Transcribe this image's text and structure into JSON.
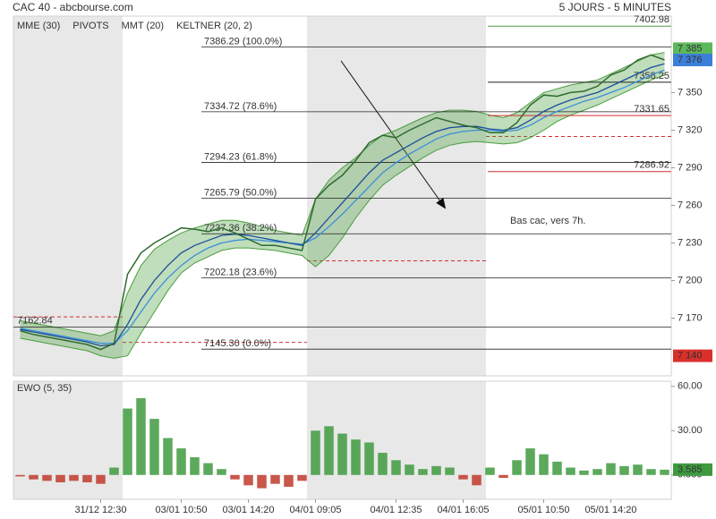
{
  "header": {
    "title": "CAC 40 - abcbourse.com",
    "period": "5 JOURS - 5 MINUTES"
  },
  "chart_data": [
    {
      "type": "line",
      "ylim": [
        7124,
        7411
      ],
      "yticks": [
        {
          "value": 7170,
          "label": "7 170"
        },
        {
          "value": 7200,
          "label": "7 200"
        },
        {
          "value": 7230,
          "label": "7 230"
        },
        {
          "value": 7260,
          "label": "7 260"
        },
        {
          "value": 7290,
          "label": "7 290"
        },
        {
          "value": 7320,
          "label": "7 320"
        },
        {
          "value": 7350,
          "label": "7 350"
        }
      ],
      "close_color": "#2e6b2e",
      "close": [
        7160,
        7157,
        7155,
        7153,
        7151,
        7149,
        7145,
        7150,
        7205,
        7222,
        7230,
        7236,
        7242,
        7241,
        7239,
        7242,
        7238,
        7233,
        7228,
        7228,
        7226,
        7224,
        7265,
        7276,
        7284,
        7296,
        7310,
        7316,
        7314,
        7320,
        7325,
        7330,
        7327,
        7324,
        7322,
        7318,
        7318,
        7326,
        7340,
        7348,
        7347,
        7350,
        7351,
        7355,
        7364,
        7368,
        7376,
        7380,
        7376
      ],
      "series": [
        {
          "name": "MME (30)",
          "color": "#3b8fd9",
          "values": [
            7162,
            7160,
            7158,
            7156,
            7154,
            7152,
            7150,
            7150,
            7160,
            7175,
            7190,
            7202,
            7212,
            7220,
            7226,
            7230,
            7232,
            7233,
            7232,
            7231,
            7230,
            7229,
            7234,
            7243,
            7253,
            7264,
            7275,
            7286,
            7294,
            7301,
            7307,
            7313,
            7317,
            7319,
            7320,
            7320,
            7319,
            7320,
            7324,
            7330,
            7335,
            7339,
            7343,
            7346,
            7350,
            7354,
            7359,
            7364,
            7368
          ]
        },
        {
          "name": "MMT (20)",
          "color": "#1b4f9c",
          "values": [
            7161,
            7159,
            7157,
            7155,
            7153,
            7151,
            7148,
            7149,
            7165,
            7185,
            7200,
            7212,
            7222,
            7228,
            7232,
            7236,
            7237,
            7236,
            7234,
            7232,
            7230,
            7228,
            7238,
            7250,
            7262,
            7274,
            7286,
            7296,
            7302,
            7308,
            7314,
            7319,
            7322,
            7323,
            7323,
            7321,
            7320,
            7322,
            7328,
            7335,
            7340,
            7344,
            7347,
            7350,
            7355,
            7360,
            7365,
            7370,
            7373
          ]
        },
        {
          "name": "KELTNER (20, 2)",
          "color": "#4a9e3f",
          "upper": [
            7168,
            7166,
            7164,
            7162,
            7160,
            7158,
            7156,
            7160,
            7190,
            7212,
            7225,
            7232,
            7238,
            7242,
            7245,
            7248,
            7248,
            7246,
            7243,
            7240,
            7238,
            7236,
            7265,
            7280,
            7290,
            7298,
            7308,
            7316,
            7320,
            7325,
            7330,
            7334,
            7336,
            7336,
            7335,
            7332,
            7330,
            7334,
            7342,
            7350,
            7353,
            7356,
            7358,
            7360,
            7365,
            7370,
            7375,
            7380,
            7382
          ],
          "lower": [
            7154,
            7152,
            7150,
            7148,
            7146,
            7144,
            7140,
            7138,
            7140,
            7158,
            7175,
            7192,
            7206,
            7214,
            7219,
            7224,
            7226,
            7226,
            7225,
            7224,
            7222,
            7220,
            7211,
            7220,
            7234,
            7250,
            7264,
            7276,
            7284,
            7291,
            7298,
            7304,
            7308,
            7310,
            7311,
            7310,
            7309,
            7310,
            7314,
            7320,
            7327,
            7332,
            7336,
            7340,
            7345,
            7350,
            7355,
            7360,
            7364
          ]
        }
      ],
      "pivots": {
        "name": "PIVOTS",
        "levels": [
          {
            "value": 7402.98,
            "color": "#4a9e3f"
          },
          {
            "value": 7358.25,
            "color": "#222222"
          },
          {
            "value": 7331.65,
            "color": "#d32f2f"
          },
          {
            "value": 7286.92,
            "color": "#d32f2f"
          }
        ],
        "prior_levels": [
          7171,
          7150.7,
          7215.7,
          7315
        ],
        "prior_color": "#d32f2f"
      },
      "fibonacci": [
        {
          "value": 7386.29,
          "label": "7386.29 (100.0%)"
        },
        {
          "value": 7334.72,
          "label": "7334.72 (78.6%)"
        },
        {
          "value": 7294.23,
          "label": "7294.23 (61.8%)"
        },
        {
          "value": 7265.79,
          "label": "7265.79 (50.0%)"
        },
        {
          "value": 7237.36,
          "label": "7237.36 (38.2%)"
        },
        {
          "value": 7202.18,
          "label": "7202.18 (23.6%)"
        },
        {
          "value": 7145.3,
          "label": "7145.30 (0.0%)"
        }
      ],
      "horizontal_lines": [
        7162.84
      ],
      "price_markers": [
        {
          "value": 7385,
          "label": "7 385",
          "color": "#5cb85c"
        },
        {
          "value": 7376,
          "label": "7 376",
          "color": "#3b7fd9"
        },
        {
          "value": 7140,
          "label": "7 140",
          "color": "#d9302c"
        }
      ],
      "annotation": "Bas cac, vers 7h."
    },
    {
      "type": "bar",
      "title": "EWO (5, 35)",
      "ylim": [
        -16.5,
        63.5
      ],
      "yticks": [
        {
          "value": 0,
          "label": "0.000"
        },
        {
          "value": 30,
          "label": "30.00"
        },
        {
          "value": 60,
          "label": "60.00"
        }
      ],
      "positive_color": "#3f9a3f",
      "negative_color": "#c0392b",
      "categories": [
        null,
        null,
        null,
        null,
        null,
        null,
        "31/12 12:30",
        null,
        null,
        null,
        null,
        null,
        "03/01 10:50",
        null,
        null,
        null,
        null,
        "03/01 14:20",
        null,
        null,
        null,
        null,
        "04/01 09:05",
        null,
        null,
        null,
        null,
        null,
        "04/01 12:35",
        null,
        null,
        null,
        null,
        "04/01 16:05",
        null,
        null,
        null,
        null,
        null,
        "05/01 10:50",
        null,
        null,
        null,
        null,
        "05/01 14:20",
        null,
        null,
        null,
        null
      ],
      "values": [
        -1,
        -3,
        -4,
        -5,
        -4,
        -5,
        -6,
        5,
        45,
        52,
        38,
        25,
        18,
        12,
        8,
        4,
        -3,
        -7,
        -9,
        -6,
        -8,
        -4,
        30,
        33,
        28,
        24,
        22,
        15,
        10,
        7,
        4,
        6,
        5,
        -3,
        -7,
        5,
        -2,
        10,
        18,
        14,
        9,
        5,
        3,
        4,
        8,
        6,
        7,
        4,
        3.585
      ]
    }
  ]
}
